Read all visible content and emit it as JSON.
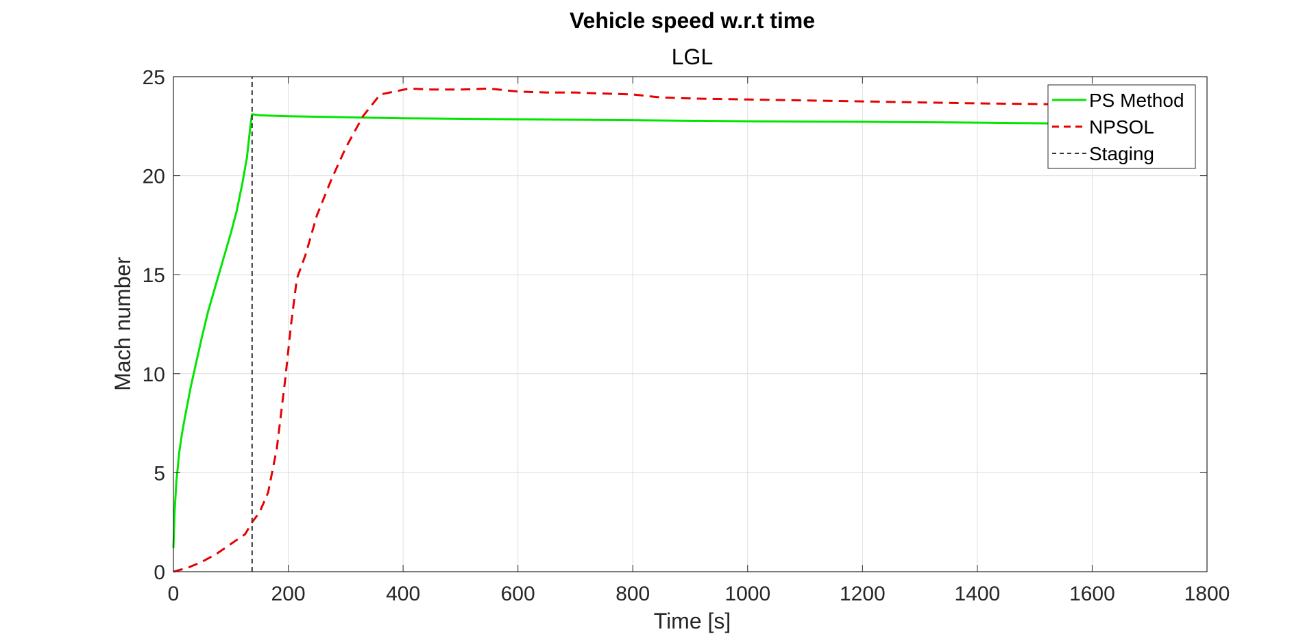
{
  "chart_data": {
    "type": "line",
    "title": "Vehicle speed w.r.t time",
    "subtitle": "LGL",
    "xlabel": "Time [s]",
    "ylabel": "Mach number",
    "xlim": [
      0,
      1800
    ],
    "ylim": [
      0,
      25
    ],
    "xticks": [
      0,
      200,
      400,
      600,
      800,
      1000,
      1200,
      1400,
      1600,
      1800
    ],
    "yticks": [
      0,
      5,
      10,
      15,
      20,
      25
    ],
    "xtick_labels": [
      "0",
      "200",
      "400",
      "600",
      "800",
      "1000",
      "1200",
      "1400",
      "1600",
      "1800"
    ],
    "ytick_labels": [
      "0",
      "5",
      "10",
      "15",
      "20",
      "25"
    ],
    "grid": true,
    "legend_position": "top-right",
    "series": [
      {
        "name": "PS Method",
        "color": "#00e600",
        "style": "solid",
        "x": [
          0,
          2,
          5,
          10,
          15,
          20,
          30,
          40,
          50,
          60,
          70,
          80,
          90,
          100,
          110,
          120,
          128,
          134,
          136,
          137,
          150,
          200,
          300,
          400,
          600,
          800,
          1000,
          1200,
          1400,
          1600
        ],
        "y": [
          1.2,
          3.0,
          4.5,
          6.0,
          7.0,
          7.8,
          9.3,
          10.6,
          11.9,
          13.1,
          14.1,
          15.1,
          16.1,
          17.1,
          18.2,
          19.6,
          20.9,
          22.5,
          22.9,
          23.1,
          23.05,
          23.0,
          22.95,
          22.9,
          22.85,
          22.8,
          22.75,
          22.72,
          22.68,
          22.62
        ]
      },
      {
        "name": "NPSOL",
        "color": "#e60000",
        "style": "dashed",
        "x": [
          0,
          25,
          50,
          75,
          100,
          125,
          137,
          150,
          165,
          180,
          195,
          205,
          215,
          230,
          250,
          275,
          300,
          330,
          360,
          410,
          450,
          500,
          550,
          600,
          650,
          700,
          750,
          800,
          850,
          900,
          1000,
          1100,
          1200,
          1300,
          1400,
          1500,
          1560
        ],
        "y": [
          0.0,
          0.2,
          0.5,
          0.9,
          1.4,
          1.9,
          2.5,
          3.0,
          4.0,
          6.2,
          9.8,
          12.5,
          14.8,
          16.0,
          18.0,
          19.8,
          21.4,
          23.0,
          24.1,
          24.4,
          24.35,
          24.35,
          24.4,
          24.25,
          24.2,
          24.2,
          24.15,
          24.1,
          23.95,
          23.9,
          23.85,
          23.8,
          23.75,
          23.7,
          23.65,
          23.62,
          23.6
        ]
      },
      {
        "name": "Staging",
        "color": "#333333",
        "style": "dotted-dashed",
        "x": [
          137,
          137
        ],
        "y": [
          0,
          25
        ]
      }
    ]
  }
}
